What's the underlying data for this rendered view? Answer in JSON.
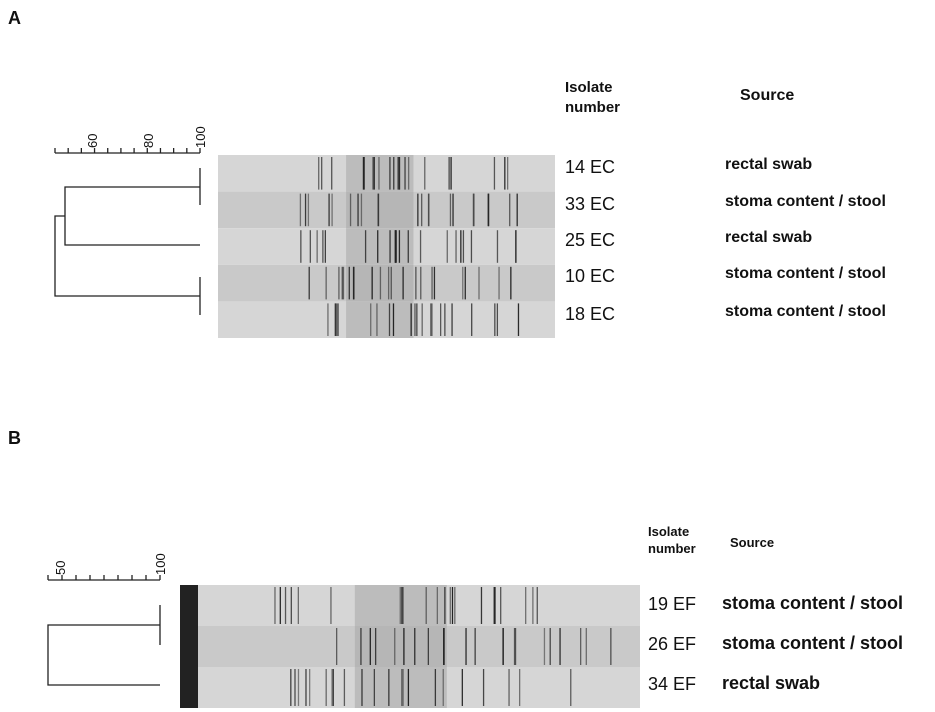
{
  "panels": [
    {
      "label": "A",
      "scale_ticks": [
        "60",
        "80",
        "100"
      ],
      "headers": {
        "isolate": "Isolate number",
        "source": "Source"
      },
      "rows": [
        {
          "isolate": "14 EC",
          "source": "rectal swab"
        },
        {
          "isolate": "33 EC",
          "source": "stoma content / stool"
        },
        {
          "isolate": "25 EC",
          "source": "rectal swab"
        },
        {
          "isolate": "10 EC",
          "source": "stoma content / stool"
        },
        {
          "isolate": "18 EC",
          "source": "stoma content / stool"
        }
      ]
    },
    {
      "label": "B",
      "scale_ticks": [
        "50",
        "100"
      ],
      "headers": {
        "isolate": "Isolate number",
        "source": "Source"
      },
      "rows": [
        {
          "isolate": "19 EF",
          "source": "stoma content / stool"
        },
        {
          "isolate": "26 EF",
          "source": "stoma content / stool"
        },
        {
          "isolate": "34 EF",
          "source": "rectal swab"
        }
      ]
    }
  ]
}
